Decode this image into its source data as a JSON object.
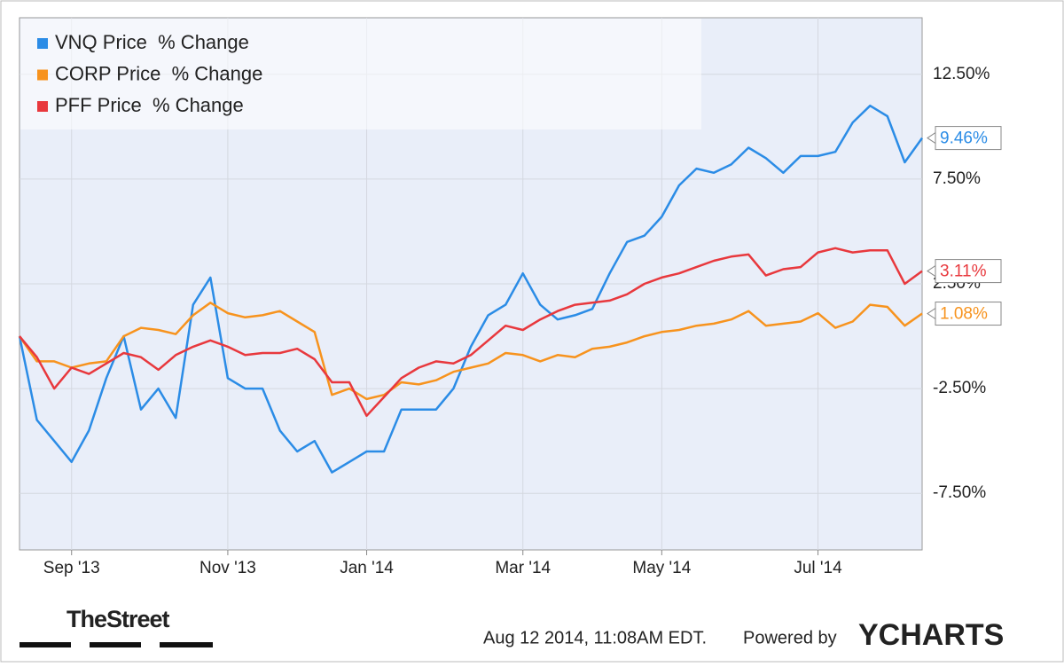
{
  "chart_data": {
    "type": "line",
    "categories": [
      null,
      null,
      null,
      "Sep '13",
      null,
      null,
      null,
      null,
      null,
      null,
      null,
      null,
      "Nov '13",
      null,
      null,
      null,
      null,
      null,
      null,
      null,
      "Jan '14",
      null,
      null,
      null,
      null,
      null,
      null,
      null,
      null,
      "Mar '14",
      null,
      null,
      null,
      null,
      null,
      null,
      null,
      "May '14",
      null,
      null,
      null,
      null,
      null,
      null,
      null,
      null,
      "Jul '14",
      null,
      null,
      null,
      null,
      null,
      null
    ],
    "series": [
      {
        "name": "VNQ Price  % Change",
        "color": "#2b8ce6",
        "values": [
          0,
          -4,
          -5,
          -6,
          -4.5,
          -2,
          0,
          -3.5,
          -2.5,
          -3.9,
          1.5,
          2.8,
          -2,
          -2.5,
          -2.5,
          -4.5,
          -5.5,
          -5,
          -6.5,
          -6,
          -5.5,
          -5.5,
          -3.5,
          -3.5,
          -3.5,
          -2.5,
          -0.5,
          1,
          1.5,
          3,
          1.5,
          0.8,
          1,
          1.3,
          3,
          4.5,
          4.8,
          5.7,
          7.2,
          8,
          7.8,
          8.2,
          9,
          8.5,
          7.8,
          8.6,
          8.6,
          8.8,
          10.2,
          11,
          10.5,
          8.3,
          9.46
        ],
        "value_labels": [
          null,
          null,
          null,
          null,
          null,
          null,
          null,
          null,
          null,
          null,
          null,
          null,
          null,
          null,
          null,
          null,
          null,
          null,
          null,
          null,
          null,
          null,
          null,
          null,
          null,
          null,
          null,
          null,
          null,
          null,
          null,
          null,
          null,
          null,
          null,
          null,
          null,
          null,
          null,
          null,
          null,
          null,
          null,
          null,
          null,
          null,
          null,
          null,
          null,
          null,
          null,
          null,
          "9.46%"
        ]
      },
      {
        "name": "CORP Price  % Change",
        "color": "#f7931e",
        "values": [
          0,
          -1.2,
          -1.2,
          -1.5,
          -1.3,
          -1.2,
          0,
          0.4,
          0.3,
          0.1,
          1,
          1.6,
          1.1,
          0.9,
          1,
          1.2,
          0.7,
          0.2,
          -2.8,
          -2.5,
          -3,
          -2.8,
          -2.2,
          -2.3,
          -2.1,
          -1.7,
          -1.5,
          -1.3,
          -0.8,
          -0.9,
          -1.2,
          -0.9,
          -1,
          -0.6,
          -0.5,
          -0.3,
          0,
          0.2,
          0.3,
          0.5,
          0.6,
          0.8,
          1.2,
          0.5,
          0.6,
          0.7,
          1.1,
          0.4,
          0.7,
          1.5,
          1.4,
          0.5,
          1.08
        ],
        "value_labels": [
          null,
          null,
          null,
          null,
          null,
          null,
          null,
          null,
          null,
          null,
          null,
          null,
          null,
          null,
          null,
          null,
          null,
          null,
          null,
          null,
          null,
          null,
          null,
          null,
          null,
          null,
          null,
          null,
          null,
          null,
          null,
          null,
          null,
          null,
          null,
          null,
          null,
          null,
          null,
          null,
          null,
          null,
          null,
          null,
          null,
          null,
          null,
          null,
          null,
          null,
          null,
          null,
          "1.08%"
        ]
      },
      {
        "name": "PFF Price  % Change",
        "color": "#e8383d",
        "values": [
          0,
          -1,
          -2.5,
          -1.5,
          -1.8,
          -1.3,
          -0.8,
          -1,
          -1.6,
          -0.9,
          -0.5,
          -0.2,
          -0.5,
          -0.9,
          -0.8,
          -0.8,
          -0.6,
          -1.1,
          -2.2,
          -2.2,
          -3.8,
          -2.9,
          -2,
          -1.5,
          -1.2,
          -1.3,
          -0.9,
          -0.2,
          0.5,
          0.3,
          0.8,
          1.2,
          1.5,
          1.6,
          1.7,
          2,
          2.5,
          2.8,
          3,
          3.3,
          3.6,
          3.8,
          3.9,
          2.9,
          3.2,
          3.3,
          4,
          4.2,
          4,
          4.1,
          4.1,
          2.5,
          3.11
        ],
        "value_labels": [
          null,
          null,
          null,
          null,
          null,
          null,
          null,
          null,
          null,
          null,
          null,
          null,
          null,
          null,
          null,
          null,
          null,
          null,
          null,
          null,
          null,
          null,
          null,
          null,
          null,
          null,
          null,
          null,
          null,
          null,
          null,
          null,
          null,
          null,
          null,
          null,
          null,
          null,
          null,
          null,
          null,
          null,
          null,
          null,
          null,
          null,
          null,
          null,
          null,
          null,
          null,
          null,
          "3.11%"
        ]
      }
    ],
    "ylim": [
      -10.2,
      15.2
    ],
    "yticks": [
      {
        "value": -7.5,
        "label": "-7.50%"
      },
      {
        "value": -2.5,
        "label": "-2.50%"
      },
      {
        "value": 2.5,
        "label": "2.50%"
      },
      {
        "value": 7.5,
        "label": "7.50%"
      },
      {
        "value": 12.5,
        "label": "12.50%"
      }
    ],
    "grid": true,
    "legend": "top-left",
    "publisher": "TheStreet",
    "timestamp": "Aug 12 2014, 11:08AM EDT.",
    "powered_by": "Powered by",
    "logo": "YCHARTS"
  }
}
